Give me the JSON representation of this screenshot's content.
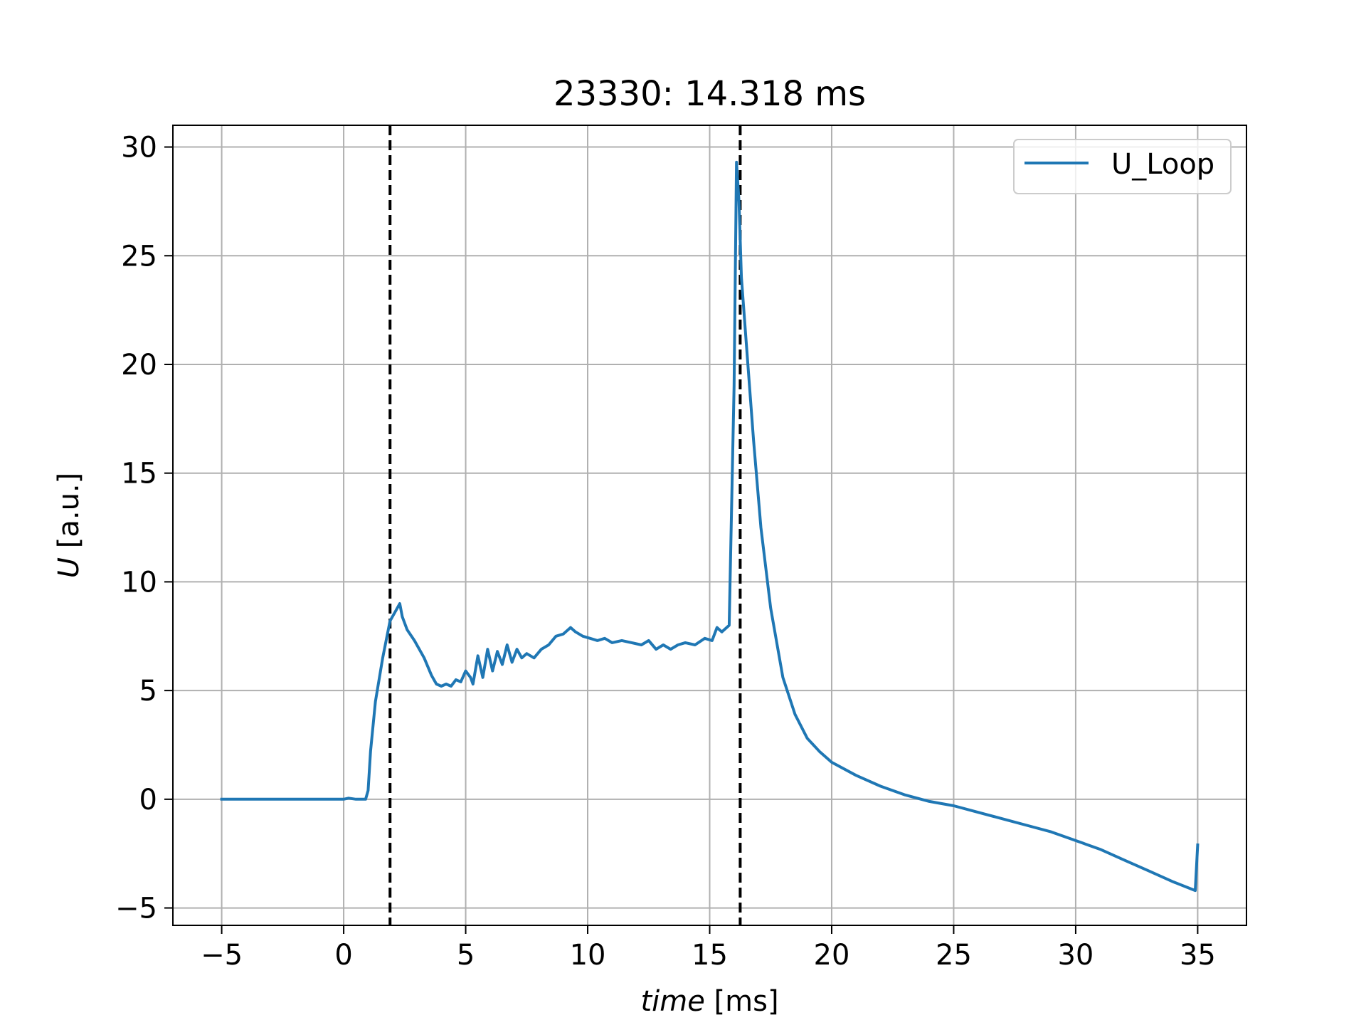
{
  "chart_data": {
    "type": "line",
    "title": "23330: 14.318 ms",
    "xlabel_italic": "time",
    "xlabel_unit": " [ms]",
    "ylabel_italic": "U",
    "ylabel_unit": " [a.u.]",
    "xlim": [
      -7,
      37
    ],
    "ylim": [
      -5.8,
      31
    ],
    "xticks": [
      -5,
      0,
      5,
      10,
      15,
      20,
      25,
      30,
      35
    ],
    "yticks": [
      -5,
      0,
      5,
      10,
      15,
      20,
      25,
      30
    ],
    "xtick_labels": [
      "−5",
      "0",
      "5",
      "10",
      "15",
      "20",
      "25",
      "30",
      "35"
    ],
    "ytick_labels": [
      "−5",
      "0",
      "5",
      "10",
      "15",
      "20",
      "25",
      "30"
    ],
    "grid": true,
    "legend_position": "upper right",
    "vlines": [
      1.9,
      16.25
    ],
    "vline_color": "#000000",
    "series": [
      {
        "name": "U_Loop",
        "color": "#1f77b4",
        "x": [
          -5,
          -1,
          0,
          0.2,
          0.5,
          0.9,
          1.0,
          1.1,
          1.3,
          1.6,
          1.9,
          2.1,
          2.3,
          2.4,
          2.6,
          2.9,
          3.3,
          3.6,
          3.8,
          4.0,
          4.2,
          4.4,
          4.6,
          4.8,
          5.0,
          5.2,
          5.3,
          5.5,
          5.7,
          5.9,
          6.1,
          6.3,
          6.5,
          6.7,
          6.9,
          7.1,
          7.3,
          7.5,
          7.8,
          8.1,
          8.4,
          8.7,
          9.0,
          9.3,
          9.5,
          9.8,
          10.1,
          10.4,
          10.7,
          11.0,
          11.4,
          11.8,
          12.2,
          12.5,
          12.8,
          13.1,
          13.4,
          13.7,
          14.0,
          14.4,
          14.8,
          15.1,
          15.3,
          15.5,
          15.8,
          16.0,
          16.1,
          16.2,
          16.3,
          16.5,
          16.8,
          17.1,
          17.5,
          18.0,
          18.5,
          19.0,
          19.5,
          20,
          21,
          22,
          23,
          24,
          25,
          26,
          27,
          28,
          29,
          30,
          31,
          32,
          33,
          34,
          34.9,
          35.0
        ],
        "y": [
          0,
          0,
          0,
          0.05,
          0,
          0,
          0.4,
          2.2,
          4.5,
          6.5,
          8.2,
          8.6,
          9.0,
          8.4,
          7.8,
          7.3,
          6.5,
          5.7,
          5.3,
          5.2,
          5.3,
          5.2,
          5.5,
          5.4,
          5.9,
          5.6,
          5.3,
          6.6,
          5.6,
          6.9,
          5.9,
          6.8,
          6.2,
          7.1,
          6.3,
          6.9,
          6.5,
          6.7,
          6.5,
          6.9,
          7.1,
          7.5,
          7.6,
          7.9,
          7.7,
          7.5,
          7.4,
          7.3,
          7.4,
          7.2,
          7.3,
          7.2,
          7.1,
          7.3,
          6.9,
          7.1,
          6.9,
          7.1,
          7.2,
          7.1,
          7.4,
          7.3,
          7.9,
          7.7,
          8.0,
          19.0,
          29.3,
          27.5,
          24.0,
          21.0,
          16.5,
          12.5,
          8.8,
          5.6,
          3.9,
          2.8,
          2.2,
          1.7,
          1.1,
          0.6,
          0.2,
          -0.1,
          -0.3,
          -0.6,
          -0.9,
          -1.2,
          -1.5,
          -1.9,
          -2.3,
          -2.8,
          -3.3,
          -3.8,
          -4.2,
          -2.1
        ]
      }
    ]
  }
}
